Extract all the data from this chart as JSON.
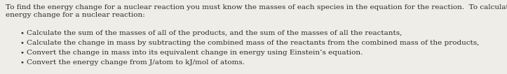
{
  "background_color": "#eeede8",
  "text_color": "#2a2a2a",
  "intro_text": "To find the energy change for a nuclear reaction you must know the masses of each species in the equation for the reaction.  To calculate the\nenergy change for a nuclear reaction:",
  "bullets": [
    "Calculate the sum of the masses of all of the products, and the sum of the masses of all the reactants,",
    "Calculate the change in mass by subtracting the combined mass of the reactants from the combined mass of the products,",
    "Convert the change in mass into its equivalent change in energy using Einstein’s equation.",
    "Convert the energy change from J/atom to kJ/mol of atoms."
  ],
  "font_size": 7.5,
  "bullet_char": "•",
  "fig_width": 7.23,
  "fig_height": 1.06,
  "dpi": 100
}
